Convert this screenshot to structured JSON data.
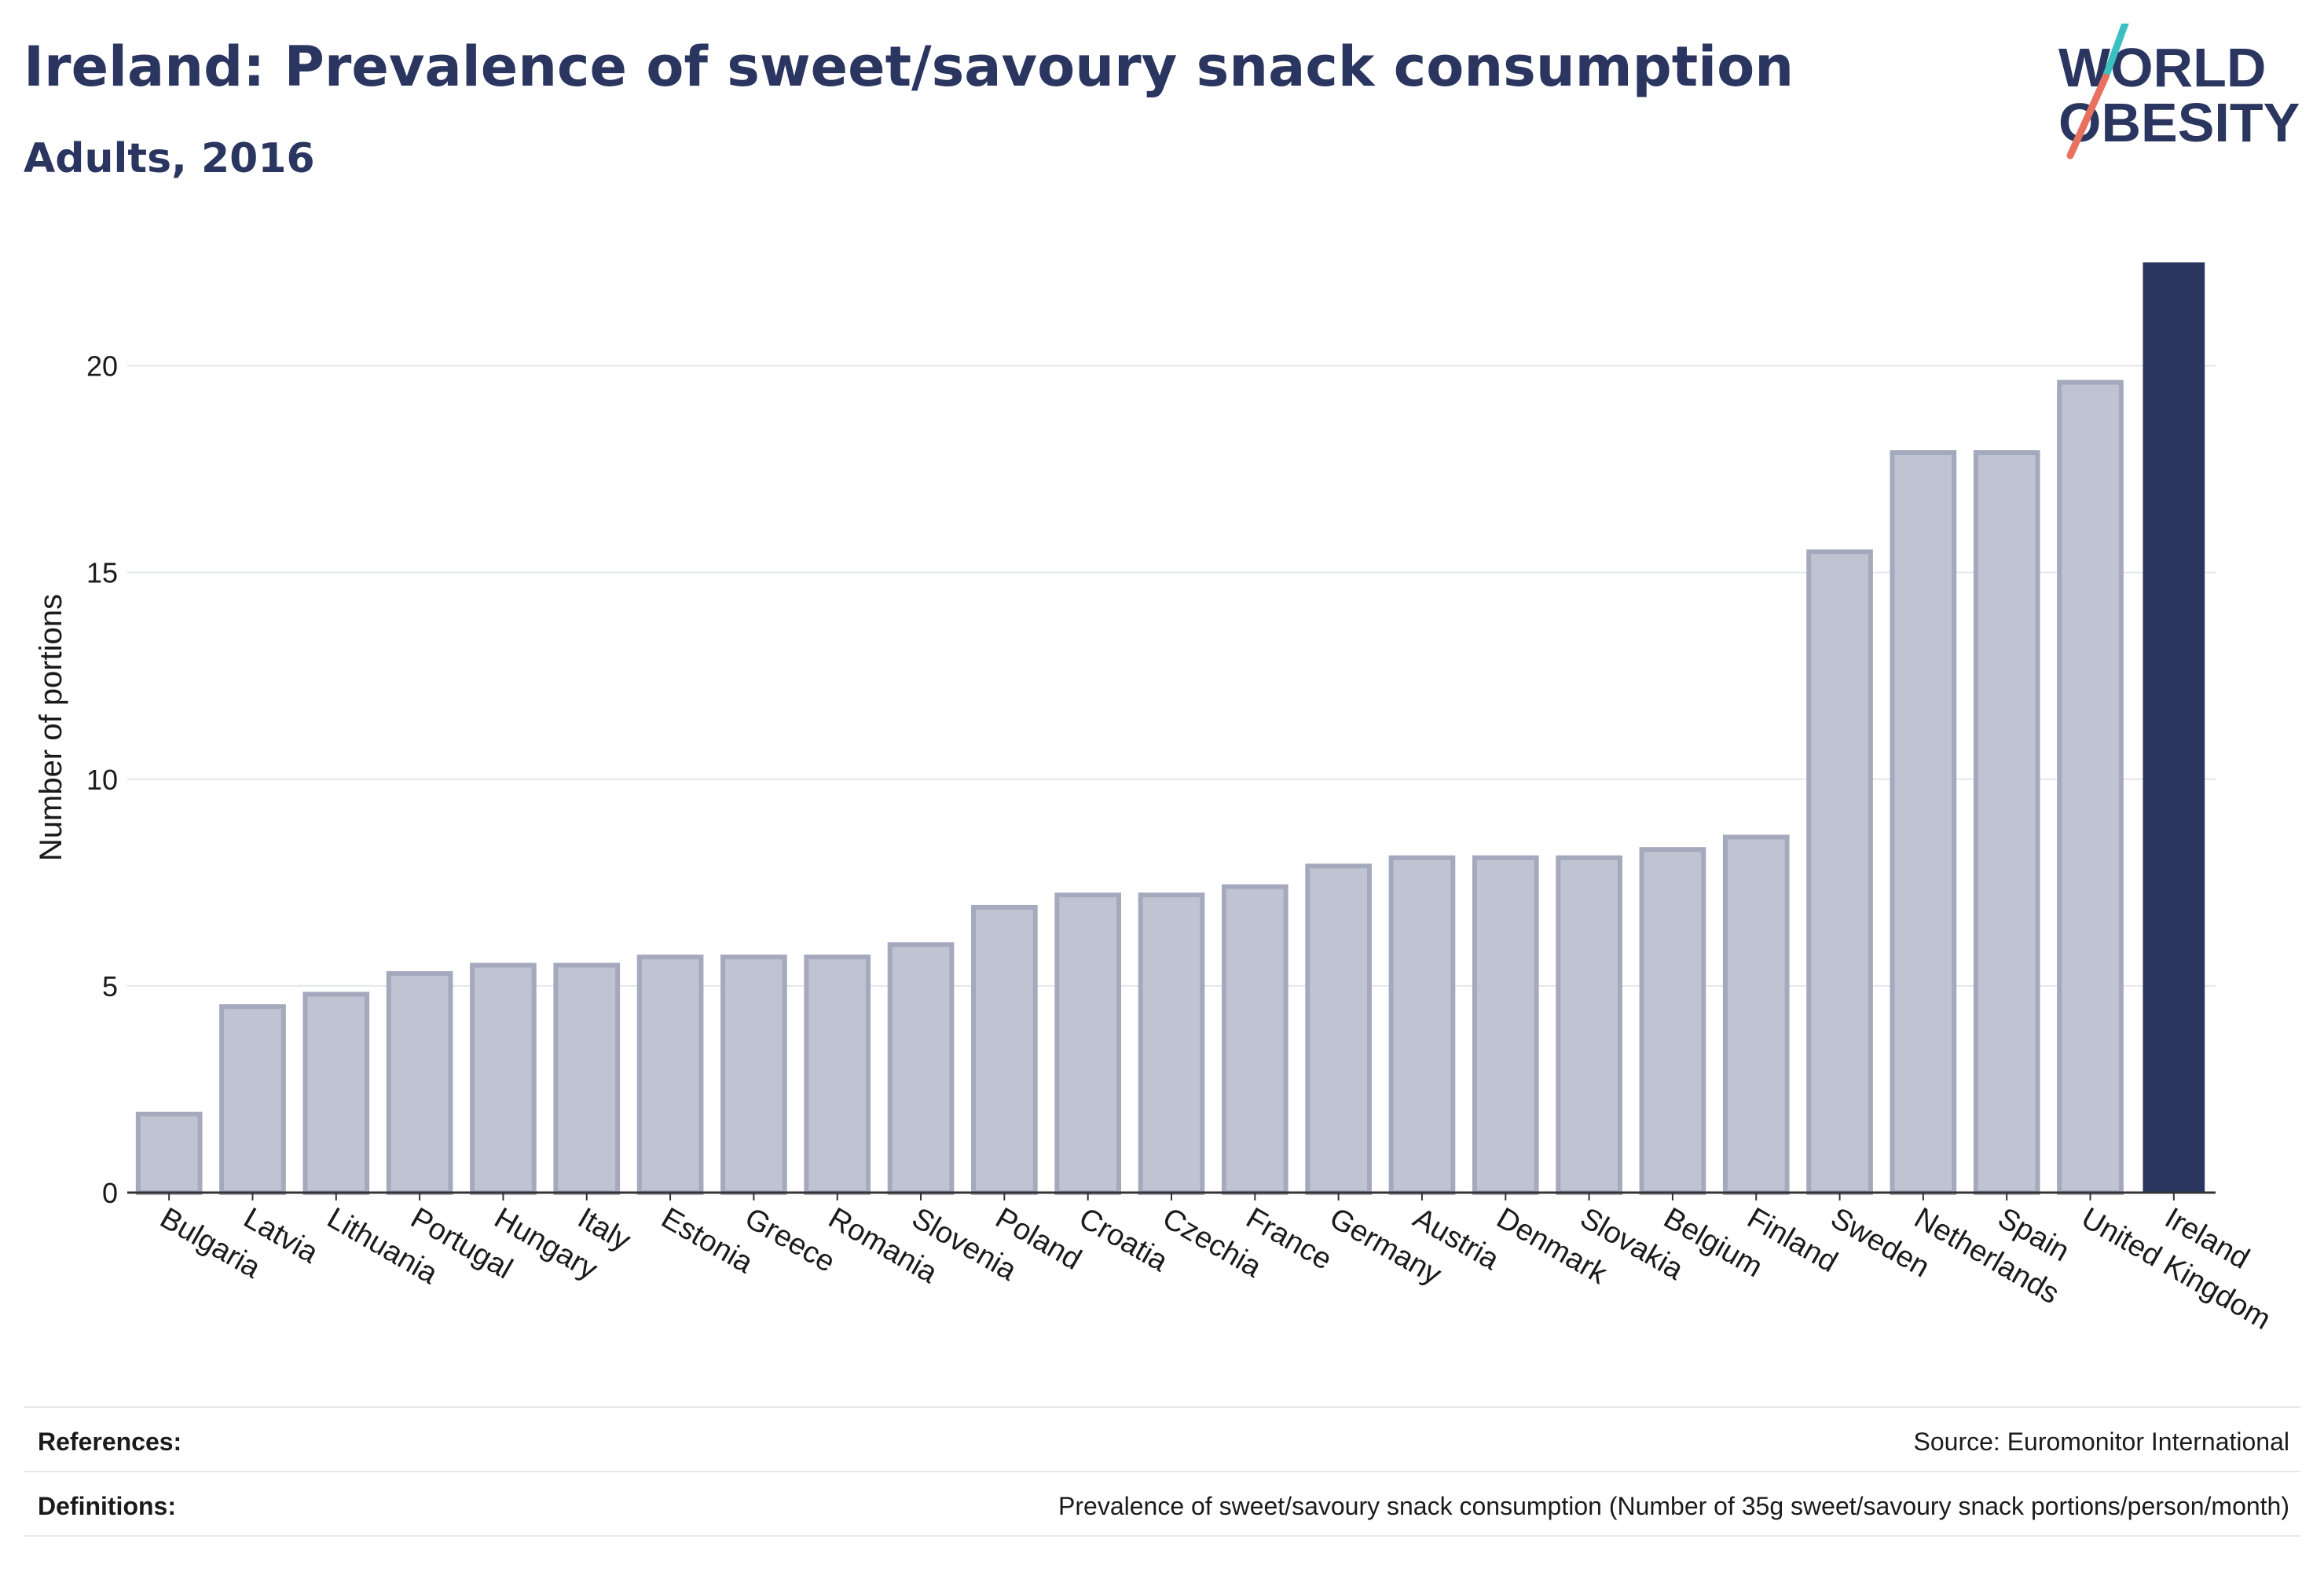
{
  "header": {
    "title": "Ireland: Prevalence of sweet/savoury snack consumption",
    "subtitle": "Adults, 2016"
  },
  "logo": {
    "line1": "WORLD",
    "line2": "OBESITY",
    "accent_teal": "#3bbfc0",
    "accent_coral": "#e8705e",
    "text_color": "#2a3560"
  },
  "colors": {
    "bar_fill": "#c0c3d1",
    "bar_stroke": "#a4a9bd",
    "highlight_fill": "#2a3560",
    "grid": "#e4e6ec",
    "axis": "#333333",
    "text": "#1b1b1b"
  },
  "chart_data": {
    "type": "bar",
    "categories": [
      "Bulgaria",
      "Latvia",
      "Lithuania",
      "Portugal",
      "Hungary",
      "Italy",
      "Estonia",
      "Greece",
      "Romania",
      "Slovenia",
      "Poland",
      "Croatia",
      "Czechia",
      "France",
      "Germany",
      "Austria",
      "Denmark",
      "Slovakia",
      "Belgium",
      "Finland",
      "Sweden",
      "Netherlands",
      "Spain",
      "United Kingdom",
      "Ireland"
    ],
    "values": [
      1.9,
      4.5,
      4.8,
      5.3,
      5.5,
      5.5,
      5.7,
      5.7,
      5.7,
      6.0,
      6.9,
      7.2,
      7.2,
      7.4,
      7.9,
      8.1,
      8.1,
      8.1,
      8.3,
      8.6,
      15.5,
      17.9,
      17.9,
      19.6,
      22.5
    ],
    "highlight": "Ireland",
    "ylabel": "Number of portions",
    "xlabel": "",
    "ylim": [
      0,
      22.5
    ],
    "yticks": [
      0,
      5,
      10,
      15,
      20
    ],
    "grid": true
  },
  "footer": {
    "references_label": "References:",
    "references_value": "Source: Euromonitor International",
    "definitions_label": "Definitions:",
    "definitions_value": "Prevalence of sweet/savoury snack consumption (Number of 35g sweet/savoury snack portions/person/month)"
  }
}
